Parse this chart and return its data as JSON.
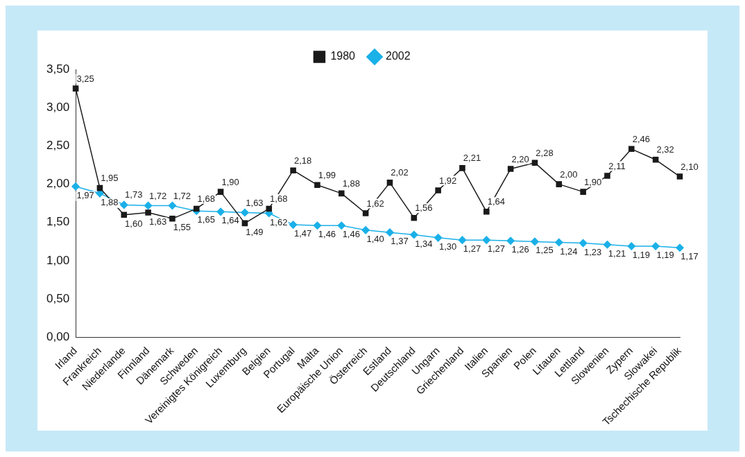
{
  "chart_data": {
    "type": "line",
    "categories": [
      "Irland",
      "Frankreich",
      "Niederlande",
      "Finnland",
      "Dänemark",
      "Schweden",
      "Vereinigtes Königreich",
      "Luxemburg",
      "Belgien",
      "Portugal",
      "Malta",
      "Europäische Union",
      "Österreich",
      "Estland",
      "Deutschland",
      "Ungarn",
      "Griechenland",
      "Italien",
      "Spanien",
      "Polen",
      "Litauen",
      "Lettland",
      "Slowenien",
      "Zypern",
      "Slowakei",
      "Tschechische Republik"
    ],
    "series": [
      {
        "name": "1980",
        "color": "#1a1a1a",
        "marker": "square",
        "values": [
          3.25,
          1.95,
          1.6,
          1.63,
          1.55,
          1.68,
          1.9,
          1.49,
          1.68,
          2.18,
          1.99,
          1.88,
          1.62,
          2.02,
          1.56,
          1.92,
          2.21,
          1.64,
          2.2,
          2.28,
          2.0,
          1.9,
          2.11,
          2.46,
          2.32,
          2.1
        ],
        "value_labels": [
          "3,25",
          "1,95",
          "1,60",
          "1,63",
          "1,55",
          "1,68",
          "1,90",
          "1,49",
          "1,68",
          "2,18",
          "1,99",
          "1,88",
          "1,62",
          "2,02",
          "1,56",
          "1,92",
          "2,21",
          "1,64",
          "2,20",
          "2,28",
          "2,00",
          "1,90",
          "2,11",
          "2,46",
          "2,32",
          "2,10"
        ]
      },
      {
        "name": "2002",
        "color": "#1ab0e8",
        "marker": "diamond",
        "values": [
          1.97,
          1.88,
          1.73,
          1.72,
          1.72,
          1.65,
          1.64,
          1.63,
          1.62,
          1.47,
          1.46,
          1.46,
          1.4,
          1.37,
          1.34,
          1.3,
          1.27,
          1.27,
          1.26,
          1.25,
          1.24,
          1.23,
          1.21,
          1.19,
          1.19,
          1.17
        ],
        "value_labels": [
          "1,97",
          "1,88",
          "1,73",
          "1,72",
          "1,72",
          "1,65",
          "1,64",
          "1,63",
          "1,62",
          "1,47",
          "1,46",
          "1,46",
          "1,40",
          "1,37",
          "1,34",
          "1,30",
          "1,27",
          "1,27",
          "1,26",
          "1,25",
          "1,24",
          "1,23",
          "1,21",
          "1,19",
          "1,19",
          "1,17"
        ]
      }
    ],
    "ylim": [
      0,
      3.5
    ],
    "yticks": [
      {
        "value": 0,
        "label": "0,00"
      },
      {
        "value": 0.5,
        "label": "0,50"
      },
      {
        "value": 1,
        "label": "1,00"
      },
      {
        "value": 1.5,
        "label": "1,50"
      },
      {
        "value": 2,
        "label": "2,00"
      },
      {
        "value": 2.5,
        "label": "2,50"
      },
      {
        "value": 3,
        "label": "3,00"
      },
      {
        "value": 3.5,
        "label": "3,50"
      }
    ],
    "grid": false,
    "legend": "top",
    "line_style": "solid"
  }
}
